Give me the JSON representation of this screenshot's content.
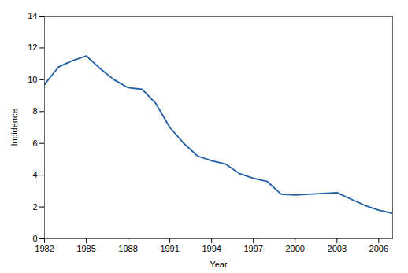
{
  "chart_data": {
    "type": "line",
    "x": [
      1982,
      1983,
      1984,
      1985,
      1986,
      1987,
      1988,
      1989,
      1990,
      1991,
      1992,
      1993,
      1994,
      1995,
      1996,
      1997,
      1998,
      1999,
      2000,
      2001,
      2002,
      2003,
      2004,
      2005,
      2006,
      2007
    ],
    "values": [
      9.7,
      10.8,
      11.2,
      11.5,
      10.7,
      10.0,
      9.5,
      9.4,
      8.5,
      7.0,
      6.0,
      5.2,
      4.9,
      4.7,
      4.1,
      3.8,
      3.6,
      2.8,
      2.75,
      2.8,
      2.85,
      2.9,
      2.5,
      2.1,
      1.8,
      1.6
    ],
    "color": "#1f5fa6",
    "xlabel": "Year",
    "ylabel": "Incidence",
    "xlim": [
      1982,
      2007
    ],
    "ylim": [
      0,
      14
    ],
    "xticks": [
      1982,
      1985,
      1988,
      1991,
      1994,
      1997,
      2000,
      2003,
      2006
    ],
    "yticks": [
      0,
      2,
      4,
      6,
      8,
      10,
      12,
      14
    ],
    "grid": false
  }
}
